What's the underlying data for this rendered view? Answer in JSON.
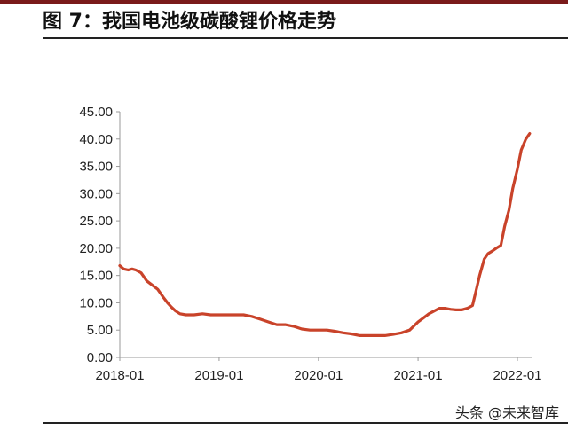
{
  "figure": {
    "title": "图 7：我国电池级碳酸锂价格走势",
    "watermark": "头条 @未来智库"
  },
  "chart_data": {
    "type": "line",
    "title": "",
    "xlabel": "",
    "ylabel": "",
    "ylim": [
      0,
      45
    ],
    "y_ticks": [
      "0.00",
      "5.00",
      "10.00",
      "15.00",
      "20.00",
      "25.00",
      "30.00",
      "35.00",
      "40.00",
      "45.00"
    ],
    "x_ticks": [
      "2018-01",
      "2019-01",
      "2020-01",
      "2021-01",
      "2022-01"
    ],
    "grid": false,
    "line_color": "#c9432a",
    "series": [
      {
        "name": "",
        "x": [
          "2018-01-01",
          "2018-01-15",
          "2018-02-01",
          "2018-02-15",
          "2018-03-01",
          "2018-03-20",
          "2018-04-10",
          "2018-05-01",
          "2018-05-20",
          "2018-06-10",
          "2018-06-25",
          "2018-07-10",
          "2018-07-25",
          "2018-08-10",
          "2018-09-01",
          "2018-10-01",
          "2018-11-01",
          "2018-12-01",
          "2019-01-01",
          "2019-02-01",
          "2019-03-01",
          "2019-04-01",
          "2019-05-01",
          "2019-06-01",
          "2019-07-01",
          "2019-08-01",
          "2019-09-01",
          "2019-10-01",
          "2019-11-01",
          "2019-12-01",
          "2020-01-01",
          "2020-02-01",
          "2020-03-01",
          "2020-04-01",
          "2020-05-01",
          "2020-06-01",
          "2020-07-01",
          "2020-08-01",
          "2020-09-01",
          "2020-10-01",
          "2020-11-01",
          "2020-12-01",
          "2021-01-01",
          "2021-01-20",
          "2021-02-10",
          "2021-03-01",
          "2021-03-20",
          "2021-04-10",
          "2021-05-01",
          "2021-05-20",
          "2021-06-10",
          "2021-07-01",
          "2021-07-20",
          "2021-08-01",
          "2021-08-15",
          "2021-09-01",
          "2021-09-15",
          "2021-10-01",
          "2021-10-15",
          "2021-11-01",
          "2021-11-15",
          "2021-12-01",
          "2021-12-15",
          "2022-01-01",
          "2022-01-15",
          "2022-02-01",
          "2022-02-15"
        ],
        "values": [
          16.8,
          16.2,
          16.0,
          16.2,
          16.0,
          15.5,
          14.0,
          13.2,
          12.5,
          11.0,
          10.0,
          9.2,
          8.5,
          8.0,
          7.8,
          7.8,
          8.0,
          7.8,
          7.8,
          7.8,
          7.8,
          7.8,
          7.5,
          7.0,
          6.5,
          6.0,
          6.0,
          5.7,
          5.2,
          5.0,
          5.0,
          5.0,
          4.8,
          4.5,
          4.3,
          4.0,
          4.0,
          4.0,
          4.0,
          4.2,
          4.5,
          5.0,
          6.5,
          7.2,
          8.0,
          8.5,
          9.0,
          9.0,
          8.8,
          8.7,
          8.7,
          9.0,
          9.5,
          12.0,
          15.0,
          18.0,
          19.0,
          19.5,
          20.0,
          20.5,
          24.0,
          27.0,
          31.0,
          34.5,
          38.0,
          40.0,
          41.0
        ]
      }
    ]
  }
}
